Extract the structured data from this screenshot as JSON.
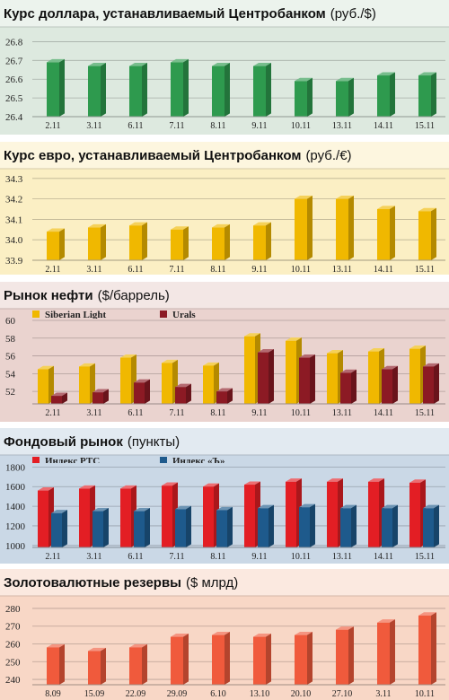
{
  "chart_data": [
    {
      "type": "bar",
      "title": "Курс доллара, устанавливаемый Центробанком",
      "unit": "(руб./$)",
      "categories": [
        "2.11",
        "3.11",
        "6.11",
        "7.11",
        "8.11",
        "9.11",
        "10.11",
        "13.11",
        "14.11",
        "15.11"
      ],
      "series": [
        {
          "values": [
            26.69,
            26.67,
            26.67,
            26.69,
            26.67,
            26.67,
            26.59,
            26.59,
            26.62,
            26.62
          ],
          "color": "#2e9a4e"
        }
      ],
      "yticks": [
        "26.4",
        "26.5",
        "26.6",
        "26.7",
        "26.8"
      ],
      "ylim": [
        26.4,
        26.85
      ],
      "panel_color": "#dde9df"
    },
    {
      "type": "bar",
      "title": "Курс евро, устанавливаемый Центробанком",
      "unit": "(руб./€)",
      "categories": [
        "2.11",
        "3.11",
        "6.11",
        "7.11",
        "8.11",
        "9.11",
        "10.11",
        "13.11",
        "14.11",
        "15.11"
      ],
      "series": [
        {
          "values": [
            34.04,
            34.06,
            34.07,
            34.05,
            34.06,
            34.07,
            34.2,
            34.2,
            34.15,
            34.14
          ],
          "color": "#f0b800"
        }
      ],
      "yticks": [
        "33.9",
        "34.0",
        "34.1",
        "34.2",
        "34.3"
      ],
      "ylim": [
        33.9,
        34.33
      ],
      "panel_color": "#fbefc4"
    },
    {
      "type": "bar",
      "title": "Рынок нефти",
      "unit": "($/баррель)",
      "categories": [
        "2.11",
        "3.11",
        "6.11",
        "7.11",
        "8.11",
        "9.11",
        "10.11",
        "13.11",
        "14.11",
        "15.11"
      ],
      "series": [
        {
          "name": "Siberian Light",
          "values": [
            54.5,
            54.8,
            55.8,
            55.2,
            54.9,
            58.2,
            57.7,
            56.3,
            56.5,
            56.8
          ],
          "color": "#f0b800"
        },
        {
          "name": "Urals",
          "values": [
            51.5,
            51.9,
            53.0,
            52.5,
            52.0,
            56.4,
            55.8,
            54.1,
            54.5,
            54.8
          ],
          "color": "#8c1a24"
        }
      ],
      "yticks": [
        "52",
        "54",
        "56",
        "58",
        "60"
      ],
      "ylim": [
        50.6,
        60.2
      ],
      "panel_color": "#ead3cf"
    },
    {
      "type": "bar",
      "title": "Фондовый рынок",
      "unit": "(пункты)",
      "categories": [
        "2.11",
        "3.11",
        "6.11",
        "7.11",
        "8.11",
        "9.11",
        "10.11",
        "13.11",
        "14.11",
        "15.11"
      ],
      "series": [
        {
          "name": "Индекс РТС",
          "values": [
            1560,
            1580,
            1580,
            1610,
            1600,
            1620,
            1650,
            1650,
            1650,
            1640
          ],
          "color": "#e31e24"
        },
        {
          "name": "Индекс «Ъ»",
          "values": [
            1330,
            1350,
            1350,
            1370,
            1360,
            1380,
            1390,
            1380,
            1380,
            1380
          ],
          "color": "#1e5a8c"
        }
      ],
      "yticks": [
        "1000",
        "1200",
        "1400",
        "1600",
        "1800"
      ],
      "ylim": [
        980,
        1840
      ],
      "panel_color": "#cad8e6"
    },
    {
      "type": "bar",
      "title": "Золотовалютные резервы",
      "unit": "($ млрд)",
      "categories": [
        "8.09",
        "15.09",
        "22.09",
        "29.09",
        "6.10",
        "13.10",
        "20.10",
        "27.10",
        "3.11",
        "10.11"
      ],
      "series": [
        {
          "values": [
            258,
            256,
            258,
            264,
            265,
            264,
            265,
            268,
            272,
            276
          ],
          "color": "#f05a3c"
        }
      ],
      "yticks": [
        "240",
        "250",
        "260",
        "270",
        "280"
      ],
      "ylim": [
        237,
        283
      ],
      "panel_color": "#f8d7c6"
    }
  ]
}
